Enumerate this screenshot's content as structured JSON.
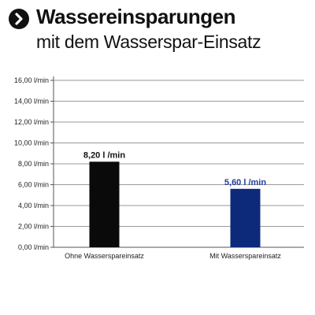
{
  "header": {
    "title": "Wassereinsparungen",
    "subtitle": "mit dem Wasserspar-Einsatz",
    "icon": "chevron-right-circle-icon"
  },
  "chart_data": {
    "type": "bar",
    "categories": [
      "Ohne Wasserspareinsatz",
      "Mit Wasserspareinsatz"
    ],
    "values": [
      8.2,
      5.6
    ],
    "data_labels": [
      "8,20 l /min",
      "5,60 l /min"
    ],
    "colors": [
      "#0a0a0a",
      "#0d2a7a"
    ],
    "label_colors": [
      "#111111",
      "#1f3f9a"
    ],
    "y_ticks": [
      "0,00 l/min",
      "2,00 l/min",
      "4,00 l/min",
      "6,00 l/min",
      "8,00 l/min",
      "10,00 l/min",
      "12,00 l/min",
      "14,00 l/min",
      "16,00 l/min"
    ],
    "ylim": [
      0,
      16
    ],
    "grid": true,
    "legend": "none"
  }
}
